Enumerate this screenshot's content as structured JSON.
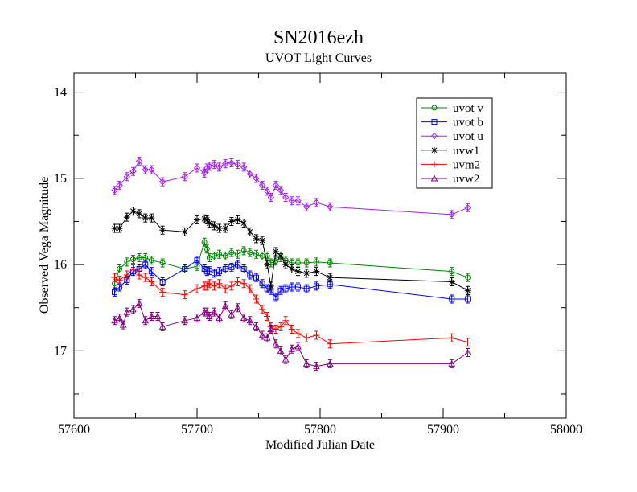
{
  "chart_data": {
    "type": "scatter",
    "title": "SN2016ezh",
    "subtitle": "UVOT Light Curves",
    "xlabel": "Modified Julian Date",
    "ylabel": "Observed Vega Magnitude",
    "xlim": [
      57600,
      58000
    ],
    "ylim": [
      17.78,
      13.78
    ],
    "inverted_y": true,
    "x_ticks": [
      57600,
      57700,
      57800,
      57900,
      58000
    ],
    "x_tick_labels": [
      "57600",
      "57700",
      "57800",
      "57900",
      "58000"
    ],
    "y_ticks": [
      14,
      15,
      16,
      17
    ],
    "y_tick_labels": [
      "14",
      "15",
      "16",
      "17"
    ],
    "grid": false,
    "legend_position": "top-right",
    "series": [
      {
        "name": "uvot v",
        "color": "#008000",
        "marker": "circle",
        "x": [
          57633,
          57637,
          57643,
          57648,
          57653,
          57658,
          57663,
          57672,
          57690,
          57700,
          57706,
          57708,
          57710,
          57714,
          57718,
          57723,
          57728,
          57733,
          57738,
          57743,
          57748,
          57753,
          57757,
          57760,
          57764,
          57768,
          57772,
          57777,
          57782,
          57789,
          57797,
          57808,
          57907,
          57920
        ],
        "y": [
          16.22,
          16.05,
          15.97,
          15.94,
          15.92,
          15.92,
          15.95,
          15.98,
          16.05,
          16.02,
          15.74,
          15.82,
          15.92,
          15.9,
          15.88,
          15.9,
          15.86,
          15.88,
          15.84,
          15.86,
          15.88,
          15.9,
          15.9,
          15.98,
          15.96,
          15.92,
          15.95,
          15.98,
          15.98,
          15.98,
          15.97,
          15.98,
          16.08,
          16.15
        ]
      },
      {
        "name": "uvot b",
        "color": "#0000ff",
        "marker": "square",
        "x": [
          57633,
          57637,
          57643,
          57648,
          57653,
          57658,
          57663,
          57672,
          57690,
          57700,
          57706,
          57708,
          57710,
          57714,
          57718,
          57723,
          57728,
          57733,
          57738,
          57743,
          57748,
          57753,
          57757,
          57760,
          57764,
          57768,
          57772,
          57777,
          57782,
          57789,
          57797,
          57808,
          57907,
          57920
        ],
        "y": [
          16.32,
          16.26,
          16.18,
          16.08,
          16.05,
          16.0,
          16.08,
          16.2,
          16.05,
          15.95,
          16.05,
          16.08,
          16.07,
          16.1,
          16.08,
          16.05,
          16.03,
          16.0,
          16.05,
          16.12,
          16.15,
          16.22,
          16.28,
          16.3,
          16.38,
          16.3,
          16.28,
          16.26,
          16.26,
          16.28,
          16.25,
          16.23,
          16.4,
          16.4
        ]
      },
      {
        "name": "uvot u",
        "color": "#a020f0",
        "marker": "diamond",
        "x": [
          57633,
          57637,
          57643,
          57648,
          57653,
          57658,
          57663,
          57672,
          57690,
          57700,
          57706,
          57708,
          57710,
          57714,
          57718,
          57723,
          57728,
          57733,
          57738,
          57743,
          57748,
          57753,
          57757,
          57760,
          57764,
          57768,
          57772,
          57777,
          57782,
          57789,
          57797,
          57808,
          57907,
          57920
        ],
        "y": [
          15.14,
          15.08,
          14.98,
          14.92,
          14.8,
          14.9,
          14.9,
          15.04,
          14.98,
          14.88,
          14.94,
          14.88,
          14.86,
          14.84,
          14.87,
          14.83,
          14.82,
          14.84,
          14.87,
          14.95,
          15.0,
          15.08,
          15.15,
          15.22,
          15.08,
          15.14,
          15.22,
          15.26,
          15.26,
          15.33,
          15.28,
          15.33,
          15.42,
          15.34
        ]
      },
      {
        "name": "uvw1",
        "color": "#000000",
        "marker": "asterisk",
        "x": [
          57633,
          57637,
          57643,
          57648,
          57653,
          57658,
          57663,
          57672,
          57690,
          57700,
          57706,
          57708,
          57710,
          57714,
          57718,
          57723,
          57728,
          57733,
          57738,
          57743,
          57748,
          57753,
          57757,
          57760,
          57764,
          57768,
          57772,
          57777,
          57782,
          57789,
          57797,
          57808,
          57907,
          57920
        ],
        "y": [
          15.58,
          15.58,
          15.45,
          15.38,
          15.41,
          15.46,
          15.46,
          15.6,
          15.62,
          15.48,
          15.47,
          15.48,
          15.52,
          15.55,
          15.58,
          15.58,
          15.5,
          15.48,
          15.52,
          15.62,
          15.7,
          15.72,
          16.0,
          16.25,
          15.85,
          15.9,
          16.0,
          16.05,
          16.08,
          16.1,
          16.08,
          16.15,
          16.2,
          16.3
        ]
      },
      {
        "name": "uvm2",
        "color": "#ff0000",
        "marker": "plus",
        "x": [
          57633,
          57637,
          57643,
          57648,
          57653,
          57658,
          57663,
          57672,
          57690,
          57700,
          57706,
          57708,
          57710,
          57714,
          57718,
          57723,
          57728,
          57733,
          57738,
          57743,
          57748,
          57753,
          57757,
          57760,
          57764,
          57768,
          57772,
          57777,
          57782,
          57789,
          57797,
          57808,
          57907,
          57920
        ],
        "y": [
          16.15,
          16.18,
          16.12,
          16.05,
          16.12,
          16.15,
          16.2,
          16.32,
          16.35,
          16.28,
          16.25,
          16.25,
          16.22,
          16.25,
          16.22,
          16.28,
          16.25,
          16.2,
          16.22,
          16.28,
          16.4,
          16.52,
          16.6,
          16.72,
          16.75,
          16.72,
          16.65,
          16.75,
          16.8,
          16.85,
          16.82,
          16.92,
          16.85,
          16.9
        ]
      },
      {
        "name": "uvw2",
        "color": "#7f007f",
        "marker": "triangle",
        "x": [
          57633,
          57637,
          57640,
          57643,
          57648,
          57653,
          57658,
          57663,
          57668,
          57672,
          57690,
          57700,
          57706,
          57708,
          57710,
          57714,
          57718,
          57723,
          57728,
          57733,
          57738,
          57743,
          57748,
          57753,
          57757,
          57760,
          57764,
          57768,
          57772,
          57777,
          57782,
          57789,
          57797,
          57808,
          57907,
          57920
        ],
        "y": [
          16.65,
          16.62,
          16.7,
          16.55,
          16.52,
          16.45,
          16.65,
          16.6,
          16.6,
          16.72,
          16.65,
          16.62,
          16.55,
          16.55,
          16.6,
          16.55,
          16.62,
          16.48,
          16.58,
          16.5,
          16.62,
          16.65,
          16.72,
          16.82,
          16.85,
          16.75,
          16.92,
          17.0,
          17.1,
          16.98,
          16.95,
          17.15,
          17.18,
          17.15,
          17.15,
          17.02
        ]
      }
    ]
  }
}
